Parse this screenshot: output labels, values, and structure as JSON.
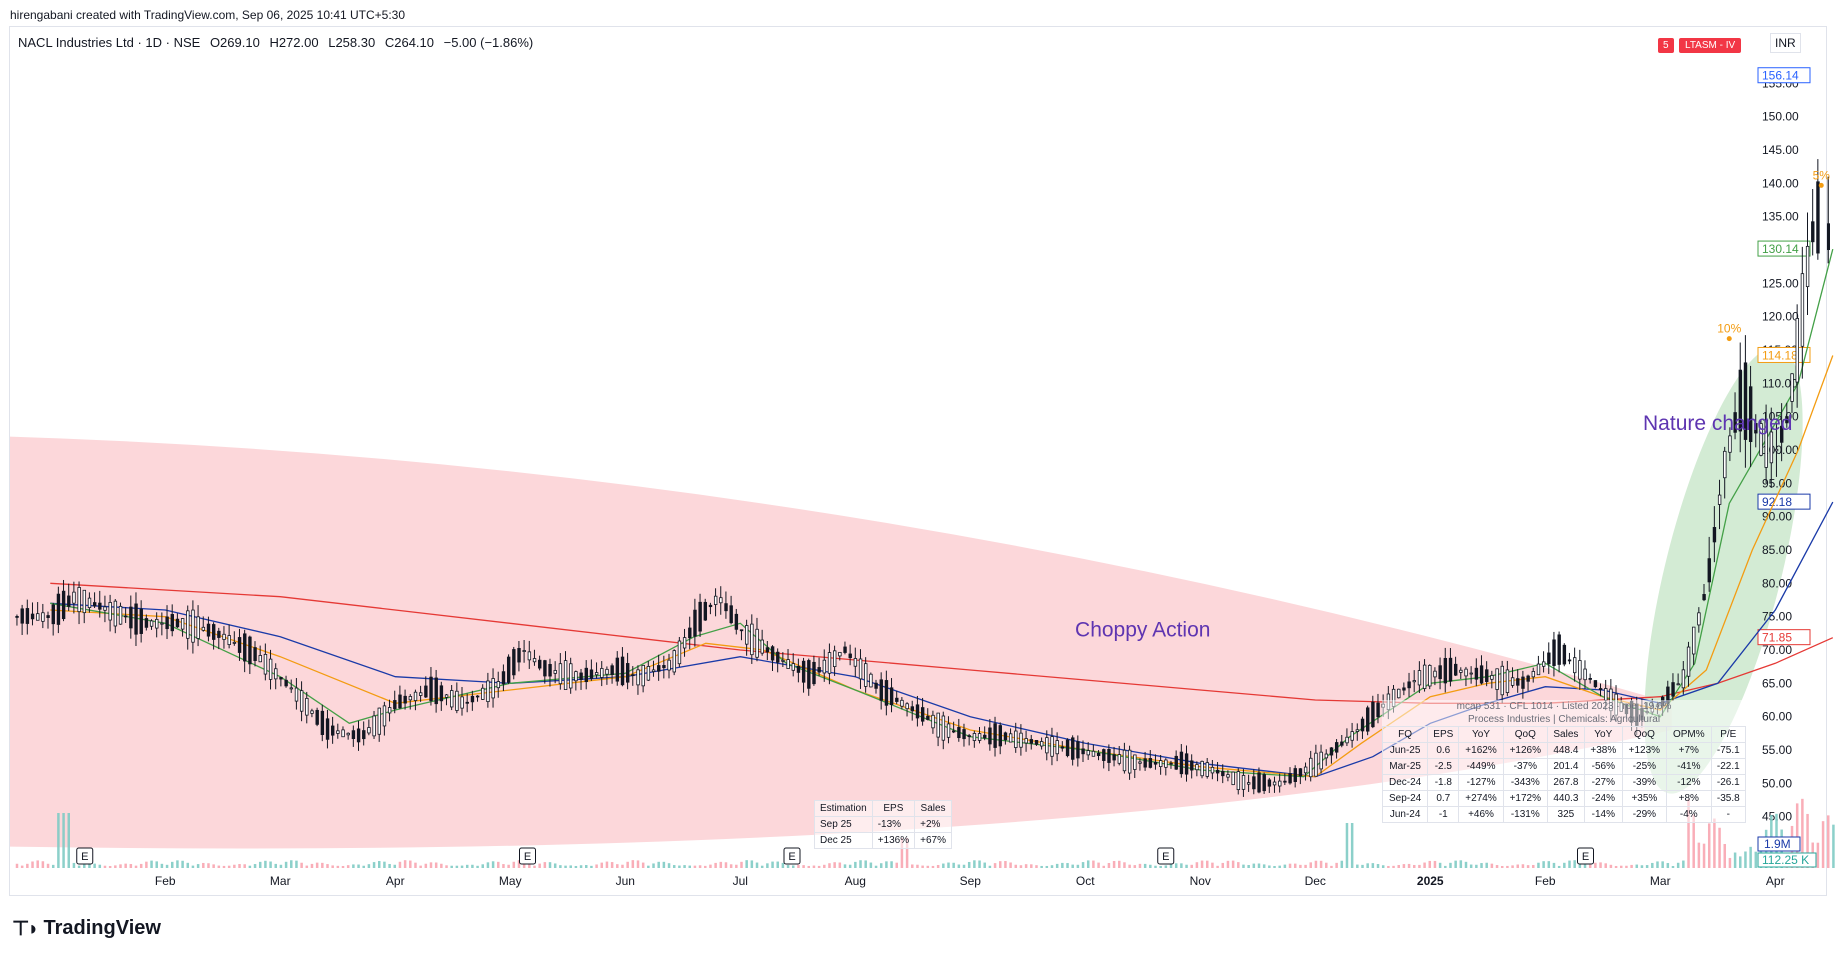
{
  "header": {
    "credit": "hirengabani created with TradingView.com, Sep 06, 2025 10:41 UTC+5:30"
  },
  "legend": {
    "symbol": "NACL Industries Ltd · 1D · NSE",
    "open": "O269.10",
    "high": "H272.00",
    "low": "L258.30",
    "close": "C264.10",
    "change": "−5.00 (−1.86%)"
  },
  "badges": {
    "count": "5",
    "tag": "LTASM - IV",
    "currency": "INR"
  },
  "brand": {
    "name": "TradingView"
  },
  "colors": {
    "candle": "#131722",
    "sma200": "#e53935",
    "ma_blue": "#1a3aa8",
    "ma_orange": "#f39c12",
    "ma_green": "#43a047",
    "shade_red": "#fbd0d4",
    "shade_green": "#c8e6c9",
    "annotation": "#5e35b1",
    "volume_up": "#80cbc4",
    "volume_down": "#f8a5b0"
  },
  "chart_data": {
    "type": "candlestick",
    "title": "",
    "ylim": [
      40,
      160
    ],
    "y_ticks": [
      45,
      50,
      55,
      60,
      65,
      70,
      75,
      80,
      85,
      90,
      95,
      100,
      105,
      110,
      115,
      120,
      125,
      130,
      135,
      140,
      145,
      150,
      155
    ],
    "y_tick_labels": [
      "45.00",
      "50.00",
      "55.00",
      "60.00",
      "65.00",
      "70.00",
      "75.00",
      "80.00",
      "85.00",
      "90.00",
      "95.00",
      "100.00",
      "105.00",
      "110.00",
      "115.00",
      "120.00",
      "125.00",
      "130.00",
      "135.00",
      "140.00",
      "145.00",
      "150.00",
      "155.00"
    ],
    "x_months": [
      {
        "label": "Feb",
        "t": 1
      },
      {
        "label": "Mar",
        "t": 2
      },
      {
        "label": "Apr",
        "t": 3
      },
      {
        "label": "May",
        "t": 4
      },
      {
        "label": "Jun",
        "t": 5
      },
      {
        "label": "Jul",
        "t": 6
      },
      {
        "label": "Aug",
        "t": 7
      },
      {
        "label": "Sep",
        "t": 8
      },
      {
        "label": "Oct",
        "t": 9
      },
      {
        "label": "Nov",
        "t": 10
      },
      {
        "label": "Dec",
        "t": 11
      },
      {
        "label": "2025",
        "t": 12,
        "bold": true
      },
      {
        "label": "Feb",
        "t": 13
      },
      {
        "label": "Mar",
        "t": 14
      },
      {
        "label": "Apr",
        "t": 15
      }
    ],
    "earnings_markers": [
      {
        "label": "E",
        "t": 0.3
      },
      {
        "label": "E",
        "t": 4.15
      },
      {
        "label": "E",
        "t": 6.45
      },
      {
        "label": "E",
        "t": 9.7
      },
      {
        "label": "E",
        "t": 13.35
      }
    ],
    "price_path": [
      [
        0,
        75
      ],
      [
        0.2,
        78
      ],
      [
        0.5,
        76
      ],
      [
        0.8,
        74
      ],
      [
        1.2,
        74
      ],
      [
        1.5,
        72
      ],
      [
        1.8,
        69
      ],
      [
        2.1,
        64
      ],
      [
        2.4,
        58
      ],
      [
        2.7,
        57
      ],
      [
        3.0,
        62
      ],
      [
        3.3,
        64
      ],
      [
        3.6,
        62
      ],
      [
        3.9,
        65
      ],
      [
        4.1,
        70
      ],
      [
        4.3,
        67
      ],
      [
        4.6,
        66
      ],
      [
        4.9,
        67
      ],
      [
        5.1,
        66
      ],
      [
        5.4,
        68
      ],
      [
        5.6,
        74
      ],
      [
        5.8,
        78
      ],
      [
        6.0,
        73
      ],
      [
        6.3,
        69
      ],
      [
        6.6,
        66
      ],
      [
        6.9,
        70
      ],
      [
        7.2,
        64
      ],
      [
        7.5,
        61
      ],
      [
        7.8,
        58
      ],
      [
        8.0,
        57
      ],
      [
        8.3,
        57
      ],
      [
        8.6,
        56
      ],
      [
        8.9,
        55
      ],
      [
        9.2,
        54
      ],
      [
        9.5,
        53
      ],
      [
        9.8,
        53
      ],
      [
        10.1,
        52
      ],
      [
        10.4,
        50
      ],
      [
        10.7,
        50
      ],
      [
        11.0,
        53
      ],
      [
        11.3,
        57
      ],
      [
        11.6,
        62
      ],
      [
        11.9,
        66
      ],
      [
        12.2,
        67
      ],
      [
        12.5,
        66
      ],
      [
        12.8,
        65
      ],
      [
        13.1,
        70
      ],
      [
        13.3,
        67
      ],
      [
        13.6,
        62
      ],
      [
        13.8,
        60
      ],
      [
        14.0,
        62
      ],
      [
        14.2,
        66
      ],
      [
        14.4,
        80
      ],
      [
        14.55,
        98
      ],
      [
        14.7,
        108
      ],
      [
        14.85,
        102
      ],
      [
        15.0,
        100
      ],
      [
        15.1,
        105
      ],
      [
        15.2,
        118
      ],
      [
        15.3,
        132
      ],
      [
        15.4,
        136
      ]
    ],
    "last_candle": {
      "t": 15.45,
      "open": 130,
      "high": 141,
      "low": 128,
      "close": 134
    },
    "moving_averages": [
      {
        "key": "sma200",
        "label_value": "71.85",
        "value": 71.85,
        "path": [
          [
            0,
            80
          ],
          [
            1,
            79
          ],
          [
            2,
            78
          ],
          [
            3,
            76
          ],
          [
            4,
            74
          ],
          [
            5,
            72
          ],
          [
            6,
            70
          ],
          [
            7,
            68.5
          ],
          [
            8,
            67
          ],
          [
            9,
            65.5
          ],
          [
            10,
            64
          ],
          [
            11,
            62.5
          ],
          [
            12,
            62
          ],
          [
            13,
            62
          ],
          [
            14,
            63
          ],
          [
            14.5,
            65
          ],
          [
            15,
            68
          ],
          [
            15.5,
            71.85
          ]
        ]
      },
      {
        "key": "ma_blue",
        "label_value": "92.18",
        "value": 92.18,
        "path": [
          [
            0,
            77
          ],
          [
            1,
            76
          ],
          [
            2,
            72
          ],
          [
            3,
            66
          ],
          [
            4,
            65
          ],
          [
            5,
            66
          ],
          [
            6,
            69
          ],
          [
            7,
            66
          ],
          [
            8,
            60
          ],
          [
            9,
            56
          ],
          [
            10,
            53
          ],
          [
            11,
            51
          ],
          [
            11.5,
            54
          ],
          [
            12,
            59
          ],
          [
            12.5,
            62
          ],
          [
            13,
            64.5
          ],
          [
            13.5,
            64
          ],
          [
            14,
            62
          ],
          [
            14.5,
            65
          ],
          [
            15,
            76
          ],
          [
            15.5,
            92.18
          ]
        ]
      },
      {
        "key": "ma_orange",
        "label_value": "114.18",
        "value": 114.18,
        "path": [
          [
            0,
            76
          ],
          [
            1,
            75
          ],
          [
            2,
            69
          ],
          [
            3,
            62
          ],
          [
            4,
            64
          ],
          [
            5,
            66
          ],
          [
            5.7,
            71
          ],
          [
            6.2,
            70
          ],
          [
            7,
            64
          ],
          [
            8,
            58
          ],
          [
            9,
            55
          ],
          [
            10,
            52.5
          ],
          [
            11,
            51
          ],
          [
            11.4,
            56
          ],
          [
            12,
            63
          ],
          [
            12.5,
            65
          ],
          [
            13,
            66
          ],
          [
            13.5,
            63
          ],
          [
            14,
            61
          ],
          [
            14.4,
            67
          ],
          [
            14.8,
            85
          ],
          [
            15.2,
            100
          ],
          [
            15.5,
            114.18
          ]
        ]
      },
      {
        "key": "ma_green",
        "label_value": "130.14",
        "value": 130.14,
        "path": [
          [
            0,
            77
          ],
          [
            1,
            74
          ],
          [
            2,
            66
          ],
          [
            2.6,
            59
          ],
          [
            3,
            61
          ],
          [
            4,
            65
          ],
          [
            5,
            66.5
          ],
          [
            5.6,
            72
          ],
          [
            6,
            74
          ],
          [
            6.4,
            68
          ],
          [
            7,
            64
          ],
          [
            8,
            57
          ],
          [
            9,
            55
          ],
          [
            10,
            52
          ],
          [
            10.9,
            51
          ],
          [
            11.3,
            57
          ],
          [
            12,
            65
          ],
          [
            12.5,
            66
          ],
          [
            13,
            68
          ],
          [
            13.5,
            63
          ],
          [
            14,
            60
          ],
          [
            14.3,
            68
          ],
          [
            14.6,
            92
          ],
          [
            14.9,
            101
          ],
          [
            15.2,
            110
          ],
          [
            15.5,
            130.14
          ]
        ]
      }
    ],
    "price_label": {
      "value": "156.14",
      "y": 156.14
    },
    "volume_label": "1.9M",
    "volume_label2": "112.25 K",
    "percent_marks": [
      {
        "label": "10%",
        "t": 14.6,
        "y": 117
      },
      {
        "label": "5%",
        "t": 15.4,
        "y": 140
      }
    ],
    "annotations": [
      {
        "text": "Choppy Action",
        "t": 9.5,
        "y": 72
      },
      {
        "text": "Nature changed",
        "t": 14.5,
        "y": 103
      }
    ]
  },
  "estimation_table": {
    "headers": [
      "Estimation",
      "EPS",
      "Sales"
    ],
    "rows": [
      [
        "Sep 25",
        "-13%",
        "+2%"
      ],
      [
        "Dec 25",
        "+136%",
        "+67%"
      ]
    ]
  },
  "financials": {
    "header1": "mcap 531 · CFL 1014 · Listed 2023 · roe -19.6%",
    "header2": "Process Industries | Chemicals: Agricultural",
    "headers": [
      "FQ",
      "EPS",
      "YoY",
      "QoQ",
      "Sales",
      "YoY",
      "QoQ",
      "OPM%",
      "P/E"
    ],
    "rows": [
      [
        "Jun-25",
        "0.6",
        "+162%",
        "+126%",
        "448.4",
        "+38%",
        "+123%",
        "+7%",
        "-75.1"
      ],
      [
        "Mar-25",
        "-2.5",
        "-449%",
        "-37%",
        "201.4",
        "-56%",
        "-25%",
        "-41%",
        "-22.1"
      ],
      [
        "Dec-24",
        "-1.8",
        "-127%",
        "-343%",
        "267.8",
        "-27%",
        "-39%",
        "-12%",
        "-26.1"
      ],
      [
        "Sep-24",
        "0.7",
        "+274%",
        "+172%",
        "440.3",
        "-24%",
        "+35%",
        "+8%",
        "-35.8"
      ],
      [
        "Jun-24",
        "-1",
        "+46%",
        "-131%",
        "325",
        "-14%",
        "-29%",
        "-4%",
        "-"
      ]
    ]
  }
}
